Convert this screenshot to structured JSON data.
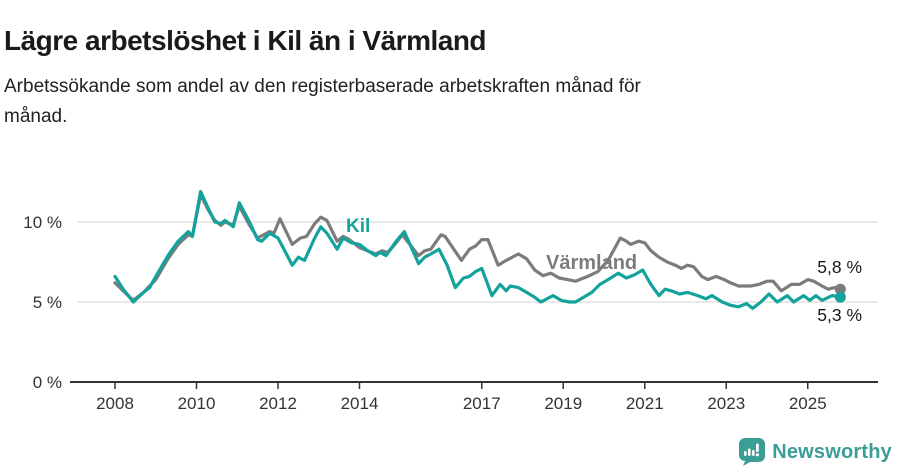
{
  "header": {
    "title": "Lägre arbetslöshet i Kil än i Värmland",
    "subtitle": "Arbetssökande som andel av den registerbaserade arbetskraften månad för månad."
  },
  "footer": {
    "brand": "Newsworthy",
    "brand_color": "#3b9e95",
    "logo_icon": "bar-chart-speech-bubble"
  },
  "colors": {
    "kil_line": "#14a39c",
    "varmland_line": "#7c7c7c",
    "gridline": "#e2e2e2",
    "axis": "#333333",
    "end_label_text": "#1a1a1a"
  },
  "chart_data": {
    "type": "line",
    "unit": "%",
    "grid": "horizontal-only",
    "legend_position": "inline-labels-on-lines",
    "x_axis": {
      "range": [
        2007.85,
        2026.2
      ],
      "ticks": [
        {
          "value": 2008,
          "label": "2008"
        },
        {
          "value": 2010,
          "label": "2010"
        },
        {
          "value": 2012,
          "label": "2012"
        },
        {
          "value": 2014,
          "label": "2014"
        },
        {
          "value": 2017,
          "label": "2017"
        },
        {
          "value": 2019,
          "label": "2019"
        },
        {
          "value": 2021,
          "label": "2021"
        },
        {
          "value": 2023,
          "label": "2023"
        },
        {
          "value": 2025,
          "label": "2025"
        }
      ]
    },
    "y_axis": {
      "range": [
        0,
        12.4
      ],
      "ticks": [
        {
          "value": 10,
          "label": "10 %"
        },
        {
          "value": 5,
          "label": "5 %"
        },
        {
          "value": 0,
          "label": "0 %"
        }
      ]
    },
    "series": [
      {
        "name": "Värmland",
        "color": "#7c7c7c",
        "end_value": 5.8,
        "end_label": "5,8 %",
        "points": [
          [
            2008.0,
            6.2
          ],
          [
            2008.2,
            5.7
          ],
          [
            2008.45,
            5.1
          ],
          [
            2008.7,
            5.6
          ],
          [
            2009.0,
            6.4
          ],
          [
            2009.3,
            7.7
          ],
          [
            2009.55,
            8.6
          ],
          [
            2009.8,
            9.2
          ],
          [
            2009.9,
            9.1
          ],
          [
            2010.1,
            11.7
          ],
          [
            2010.3,
            10.7
          ],
          [
            2010.45,
            10.1
          ],
          [
            2010.6,
            9.8
          ],
          [
            2010.7,
            10.0
          ],
          [
            2010.9,
            9.8
          ],
          [
            2011.05,
            11.0
          ],
          [
            2011.3,
            9.8
          ],
          [
            2011.5,
            9.0
          ],
          [
            2011.8,
            9.4
          ],
          [
            2011.9,
            9.3
          ],
          [
            2012.05,
            10.2
          ],
          [
            2012.35,
            8.6
          ],
          [
            2012.55,
            9.0
          ],
          [
            2012.7,
            9.1
          ],
          [
            2012.9,
            9.9
          ],
          [
            2013.05,
            10.3
          ],
          [
            2013.2,
            10.1
          ],
          [
            2013.45,
            8.8
          ],
          [
            2013.6,
            9.1
          ],
          [
            2013.75,
            8.9
          ],
          [
            2014.0,
            8.4
          ],
          [
            2014.4,
            8.0
          ],
          [
            2014.55,
            8.2
          ],
          [
            2014.7,
            8.1
          ],
          [
            2014.9,
            8.7
          ],
          [
            2015.05,
            9.2
          ],
          [
            2015.45,
            7.9
          ],
          [
            2015.6,
            8.2
          ],
          [
            2015.75,
            8.3
          ],
          [
            2016.0,
            9.2
          ],
          [
            2016.1,
            9.1
          ],
          [
            2016.5,
            7.6
          ],
          [
            2016.7,
            8.3
          ],
          [
            2016.85,
            8.5
          ],
          [
            2017.0,
            8.9
          ],
          [
            2017.15,
            8.9
          ],
          [
            2017.4,
            7.3
          ],
          [
            2017.6,
            7.6
          ],
          [
            2017.9,
            8.0
          ],
          [
            2018.1,
            7.7
          ],
          [
            2018.3,
            7.0
          ],
          [
            2018.5,
            6.65
          ],
          [
            2018.7,
            6.8
          ],
          [
            2018.9,
            6.5
          ],
          [
            2019.1,
            6.4
          ],
          [
            2019.3,
            6.3
          ],
          [
            2019.6,
            6.6
          ],
          [
            2019.85,
            6.9
          ],
          [
            2020.1,
            7.6
          ],
          [
            2020.4,
            9.0
          ],
          [
            2020.55,
            8.8
          ],
          [
            2020.65,
            8.6
          ],
          [
            2020.85,
            8.8
          ],
          [
            2021.0,
            8.7
          ],
          [
            2021.15,
            8.2
          ],
          [
            2021.35,
            7.8
          ],
          [
            2021.55,
            7.5
          ],
          [
            2021.75,
            7.3
          ],
          [
            2021.9,
            7.1
          ],
          [
            2022.05,
            7.3
          ],
          [
            2022.2,
            7.2
          ],
          [
            2022.4,
            6.6
          ],
          [
            2022.55,
            6.4
          ],
          [
            2022.75,
            6.6
          ],
          [
            2022.95,
            6.4
          ],
          [
            2023.1,
            6.2
          ],
          [
            2023.3,
            6.0
          ],
          [
            2023.6,
            6.0
          ],
          [
            2023.8,
            6.1
          ],
          [
            2024.0,
            6.3
          ],
          [
            2024.15,
            6.3
          ],
          [
            2024.35,
            5.7
          ],
          [
            2024.6,
            6.1
          ],
          [
            2024.8,
            6.1
          ],
          [
            2025.0,
            6.4
          ],
          [
            2025.15,
            6.3
          ],
          [
            2025.35,
            6.0
          ],
          [
            2025.5,
            5.8
          ],
          [
            2025.65,
            5.9
          ],
          [
            2025.8,
            5.8
          ]
        ]
      },
      {
        "name": "Kil",
        "color": "#14a39c",
        "end_value": 5.3,
        "end_label": "5,3 %",
        "points": [
          [
            2008.0,
            6.6
          ],
          [
            2008.2,
            5.8
          ],
          [
            2008.45,
            5.0
          ],
          [
            2008.7,
            5.6
          ],
          [
            2008.85,
            5.9
          ],
          [
            2009.0,
            6.6
          ],
          [
            2009.3,
            7.9
          ],
          [
            2009.55,
            8.8
          ],
          [
            2009.8,
            9.4
          ],
          [
            2009.9,
            9.1
          ],
          [
            2010.1,
            11.9
          ],
          [
            2010.3,
            10.8
          ],
          [
            2010.45,
            10.0
          ],
          [
            2010.6,
            9.9
          ],
          [
            2010.7,
            10.1
          ],
          [
            2010.9,
            9.7
          ],
          [
            2011.05,
            11.2
          ],
          [
            2011.3,
            10.0
          ],
          [
            2011.5,
            8.9
          ],
          [
            2011.6,
            8.8
          ],
          [
            2011.8,
            9.3
          ],
          [
            2012.0,
            9.0
          ],
          [
            2012.35,
            7.3
          ],
          [
            2012.5,
            7.8
          ],
          [
            2012.65,
            7.6
          ],
          [
            2012.9,
            9.0
          ],
          [
            2013.05,
            9.7
          ],
          [
            2013.2,
            9.3
          ],
          [
            2013.45,
            8.3
          ],
          [
            2013.6,
            9.0
          ],
          [
            2013.8,
            8.7
          ],
          [
            2014.0,
            8.6
          ],
          [
            2014.2,
            8.2
          ],
          [
            2014.4,
            7.9
          ],
          [
            2014.5,
            8.1
          ],
          [
            2014.65,
            7.9
          ],
          [
            2014.9,
            8.8
          ],
          [
            2015.1,
            9.4
          ],
          [
            2015.45,
            7.4
          ],
          [
            2015.6,
            7.8
          ],
          [
            2015.75,
            8.0
          ],
          [
            2015.95,
            8.3
          ],
          [
            2016.15,
            7.3
          ],
          [
            2016.35,
            5.9
          ],
          [
            2016.55,
            6.5
          ],
          [
            2016.7,
            6.6
          ],
          [
            2016.85,
            6.9
          ],
          [
            2017.0,
            7.1
          ],
          [
            2017.25,
            5.4
          ],
          [
            2017.45,
            6.1
          ],
          [
            2017.6,
            5.7
          ],
          [
            2017.7,
            6.0
          ],
          [
            2017.9,
            5.9
          ],
          [
            2018.1,
            5.6
          ],
          [
            2018.3,
            5.3
          ],
          [
            2018.45,
            5.0
          ],
          [
            2018.6,
            5.2
          ],
          [
            2018.75,
            5.4
          ],
          [
            2018.95,
            5.1
          ],
          [
            2019.15,
            5.0
          ],
          [
            2019.3,
            5.0
          ],
          [
            2019.5,
            5.3
          ],
          [
            2019.7,
            5.6
          ],
          [
            2019.9,
            6.1
          ],
          [
            2020.1,
            6.4
          ],
          [
            2020.35,
            6.8
          ],
          [
            2020.55,
            6.5
          ],
          [
            2020.75,
            6.7
          ],
          [
            2020.95,
            7.0
          ],
          [
            2021.15,
            6.1
          ],
          [
            2021.35,
            5.4
          ],
          [
            2021.5,
            5.8
          ],
          [
            2021.65,
            5.7
          ],
          [
            2021.85,
            5.5
          ],
          [
            2022.05,
            5.6
          ],
          [
            2022.3,
            5.4
          ],
          [
            2022.5,
            5.2
          ],
          [
            2022.65,
            5.4
          ],
          [
            2022.9,
            5.0
          ],
          [
            2023.1,
            4.8
          ],
          [
            2023.3,
            4.7
          ],
          [
            2023.5,
            4.9
          ],
          [
            2023.65,
            4.6
          ],
          [
            2023.85,
            5.0
          ],
          [
            2024.05,
            5.5
          ],
          [
            2024.25,
            5.0
          ],
          [
            2024.5,
            5.4
          ],
          [
            2024.65,
            5.0
          ],
          [
            2024.9,
            5.4
          ],
          [
            2025.05,
            5.1
          ],
          [
            2025.2,
            5.4
          ],
          [
            2025.35,
            5.1
          ],
          [
            2025.6,
            5.4
          ],
          [
            2025.8,
            5.3
          ]
        ]
      }
    ]
  }
}
